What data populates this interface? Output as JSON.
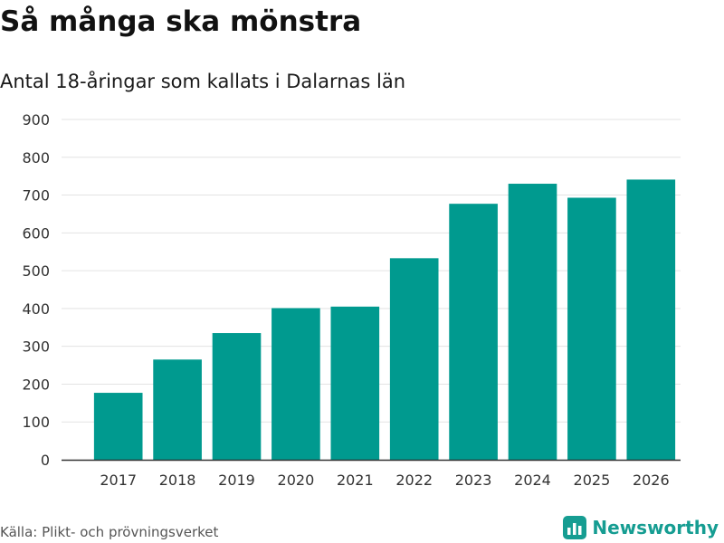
{
  "chart_data": {
    "type": "bar",
    "title": "Så många ska mönstra",
    "subtitle": "Antal 18-åringar som kallats i Dalarnas län",
    "categories": [
      "2017",
      "2018",
      "2019",
      "2020",
      "2021",
      "2022",
      "2023",
      "2024",
      "2025",
      "2026"
    ],
    "values": [
      177,
      265,
      335,
      401,
      405,
      533,
      677,
      730,
      693,
      741
    ],
    "ylim": [
      0,
      900
    ],
    "yticks": [
      0,
      100,
      200,
      300,
      400,
      500,
      600,
      700,
      800,
      900
    ],
    "xlabel": "",
    "ylabel": "",
    "grid": true,
    "bar_color": "#009a8f"
  },
  "footer": {
    "source": "Källa: Plikt- och prövningsverket",
    "brand": "Newsworthy"
  },
  "colors": {
    "accent": "#169d92",
    "bars": "#009a8f",
    "grid": "#e3e3e3",
    "axis": "#333333"
  }
}
